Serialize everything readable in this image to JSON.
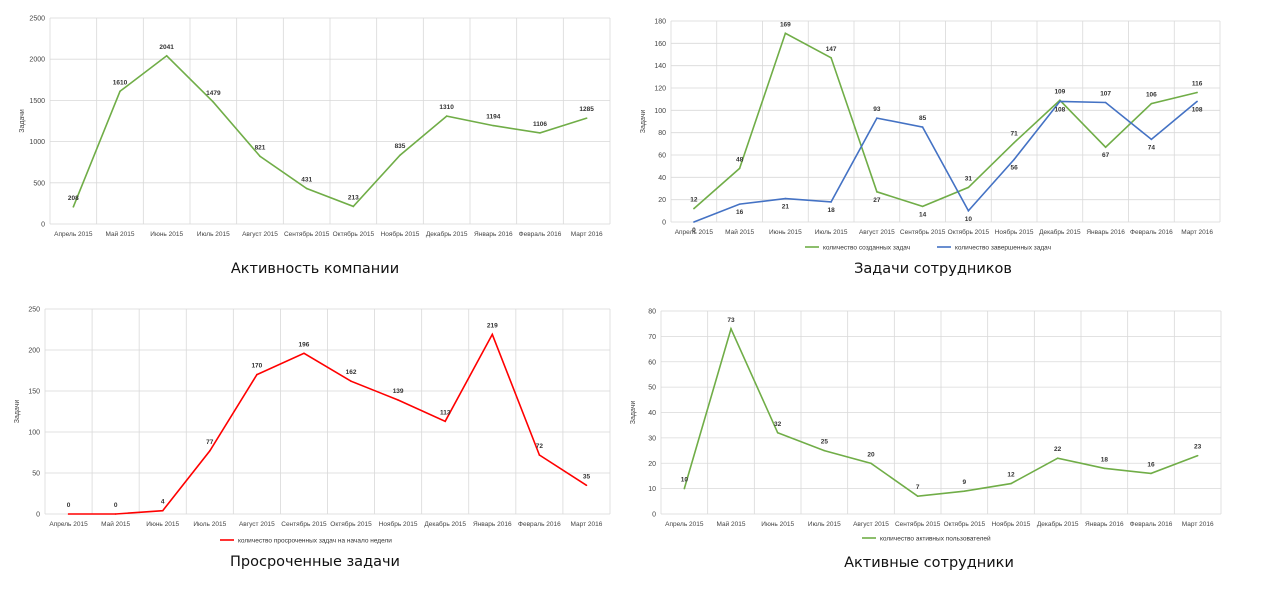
{
  "charts": [
    {
      "type": "line",
      "caption": "Активность компании",
      "ylabel": "Задачи",
      "ylim": [
        0,
        2500
      ],
      "yticks": [
        0,
        500,
        1000,
        1500,
        2000,
        2500
      ],
      "grid": true,
      "categories": [
        "Апрель 2015",
        "Май 2015",
        "Июнь 2015",
        "Июль 2015",
        "Август 2015",
        "Сентябрь 2015",
        "Октябрь 2015",
        "Ноябрь 2015",
        "Декабрь 2015",
        "Январь 2016",
        "Февраль 2016",
        "Март 2016"
      ],
      "series": [
        {
          "values": [
            208,
            1610,
            2041,
            1479,
            821,
            431,
            213,
            835,
            1310,
            1194,
            1106,
            1285
          ],
          "color": "#70ad47"
        }
      ]
    },
    {
      "type": "line",
      "caption": "Задачи сотрудников",
      "ylabel": "Задачи",
      "ylim": [
        0,
        180
      ],
      "yticks": [
        0,
        20,
        40,
        60,
        80,
        100,
        120,
        140,
        160,
        180
      ],
      "grid": true,
      "legend_position": "bottom",
      "categories": [
        "Апрель 2015",
        "Май 2015",
        "Июнь 2015",
        "Июль 2015",
        "Август 2015",
        "Сентябрь 2015",
        "Октябрь 2015",
        "Ноябрь 2015",
        "Декабрь 2015",
        "Январь 2016",
        "Февраль 2016",
        "Март 2016"
      ],
      "series": [
        {
          "name": "количество созданных задач",
          "values": [
            12,
            48,
            169,
            147,
            27,
            14,
            31,
            71,
            109,
            67,
            106,
            116
          ],
          "color": "#70ad47"
        },
        {
          "name": "количество завершенных задач",
          "values": [
            0,
            16,
            21,
            18,
            93,
            85,
            10,
            56,
            108,
            107,
            74,
            108
          ],
          "color": "#4472c4"
        }
      ]
    },
    {
      "type": "line",
      "caption": "Просроченные задачи",
      "ylabel": "Задачи",
      "ylim": [
        0,
        250
      ],
      "yticks": [
        0,
        50,
        100,
        150,
        200,
        250
      ],
      "grid": true,
      "legend_position": "bottom",
      "categories": [
        "Апрель 2015",
        "Май 2015",
        "Июнь 2015",
        "Июль 2015",
        "Август 2015",
        "Сентябрь 2015",
        "Октябрь 2015",
        "Ноябрь 2015",
        "Декабрь 2015",
        "Январь 2016",
        "Февраль 2016",
        "Март 2016"
      ],
      "series": [
        {
          "name": "количество просроченных задач на начало недели",
          "values": [
            0,
            0,
            4,
            77,
            170,
            196,
            162,
            139,
            113,
            219,
            72,
            35
          ],
          "color": "#ff0000"
        }
      ]
    },
    {
      "type": "line",
      "caption": "Активные сотрудники",
      "ylabel": "Задачи",
      "ylim": [
        0,
        80
      ],
      "yticks": [
        0,
        10,
        20,
        30,
        40,
        50,
        60,
        70,
        80
      ],
      "grid": true,
      "legend_position": "bottom",
      "categories": [
        "Апрель 2015",
        "Май 2015",
        "Июнь 2015",
        "Июль 2015",
        "Август 2015",
        "Сентябрь 2015",
        "Октябрь 2015",
        "Ноябрь 2015",
        "Декабрь 2015",
        "Январь 2016",
        "Февраль 2016",
        "Март 2016"
      ],
      "series": [
        {
          "name": "количество активных пользователей",
          "values": [
            10,
            73,
            32,
            25,
            20,
            7,
            9,
            12,
            22,
            18,
            16,
            23
          ],
          "color": "#70ad47"
        }
      ]
    }
  ]
}
